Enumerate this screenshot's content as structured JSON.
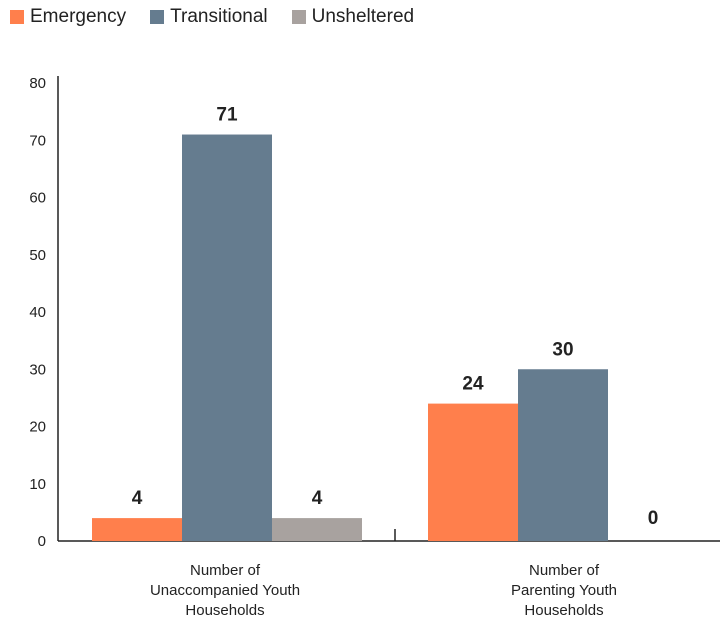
{
  "chart_data": {
    "type": "bar",
    "categories": [
      [
        "Number of",
        "Unaccompanied Youth",
        "Households"
      ],
      [
        "Number of",
        "Parenting Youth",
        "Households"
      ]
    ],
    "series": [
      {
        "name": "Emergency",
        "color": "#ff7f4c",
        "values": [
          4,
          24
        ]
      },
      {
        "name": "Transitional",
        "color": "#657c8f",
        "values": [
          71,
          30
        ]
      },
      {
        "name": "Unsheltered",
        "color": "#a8a29f",
        "values": [
          4,
          0
        ]
      }
    ],
    "ylim": [
      0,
      80
    ],
    "yticks": [
      0,
      10,
      20,
      30,
      40,
      50,
      60,
      70,
      80
    ],
    "legend_position": "top-left",
    "grid": false
  }
}
